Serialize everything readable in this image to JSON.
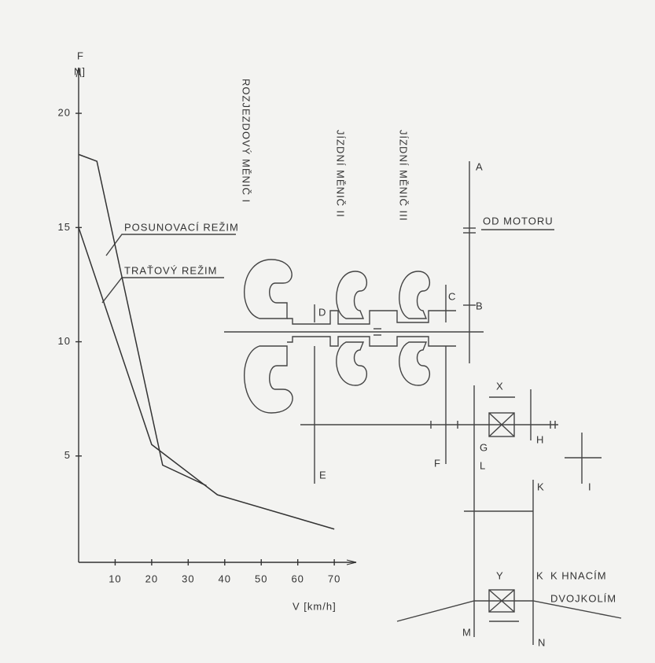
{
  "chart_data": {
    "type": "line",
    "ylabel": "F",
    "yunit": "N]",
    "xlabel": "V [km/h]",
    "xlim": [
      0,
      76
    ],
    "ylim": [
      0,
      22
    ],
    "xticks": [
      10,
      20,
      30,
      40,
      50,
      60,
      70
    ],
    "yticks": [
      5,
      10,
      15,
      20
    ],
    "color": "#333333",
    "series": [
      {
        "name": "POSUNOVACÍ REŽIM",
        "x": [
          0,
          5,
          23,
          35
        ],
        "values": [
          18.2,
          17.9,
          4.6,
          3.7
        ]
      },
      {
        "name": "TRAŤOVÝ REŽIM",
        "x": [
          0,
          20,
          38,
          70
        ],
        "values": [
          15,
          5.5,
          3.3,
          1.8
        ]
      }
    ]
  },
  "diagram": {
    "converters": [
      "ROZJEZDOVÝ MĚNIČ I",
      "JÍZDNÍ MĚNIČ II",
      "JÍZDNÍ MĚNIČ III"
    ],
    "motor": "OD MOTORU",
    "output": [
      "K HNACÍM",
      "DVOJKOLÍM"
    ],
    "labels": [
      "A",
      "B",
      "C",
      "D",
      "E",
      "F",
      "G",
      "H",
      "I",
      "K",
      "L",
      "M",
      "N",
      "X",
      "Y",
      "K"
    ]
  }
}
